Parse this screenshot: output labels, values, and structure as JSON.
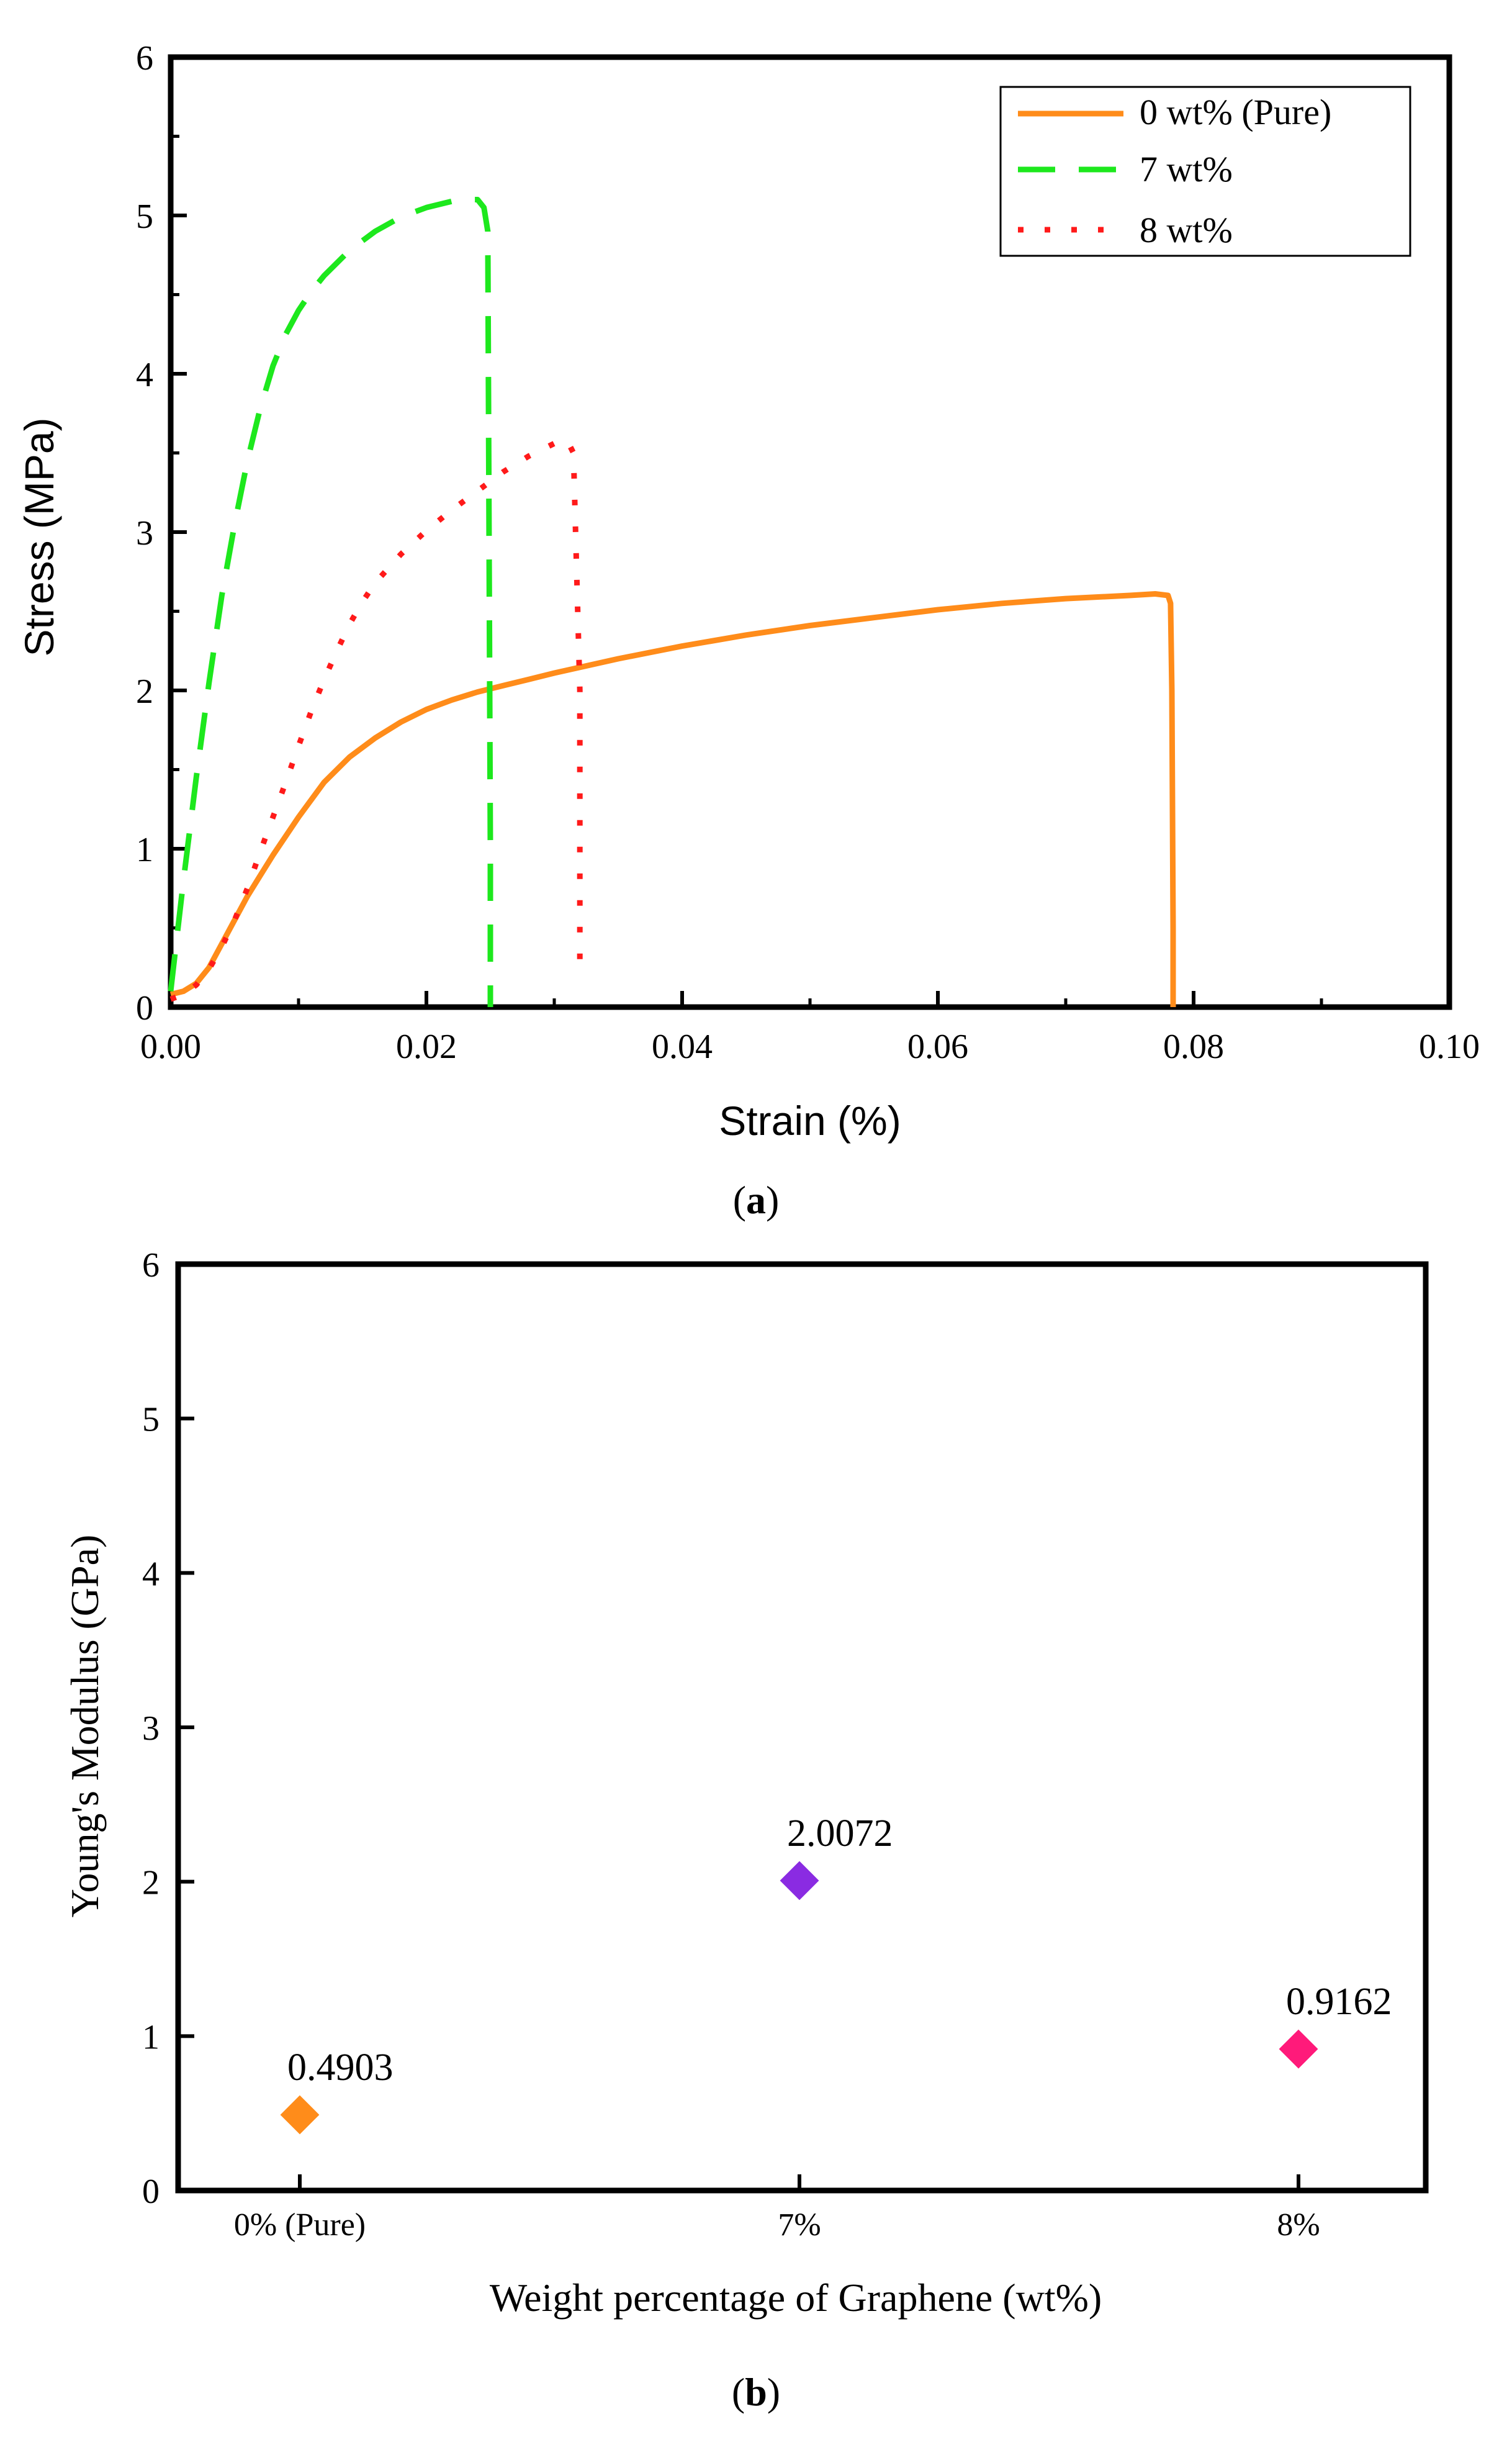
{
  "chart_data": [
    {
      "type": "line",
      "panel_label": "a",
      "title": "",
      "xlabel": "Strain (%)",
      "ylabel": "Stress (MPa)",
      "xlim": [
        0,
        0.1
      ],
      "ylim": [
        0,
        6
      ],
      "xticks": [
        0.0,
        0.02,
        0.04,
        0.06,
        0.08,
        0.1
      ],
      "xtick_labels": [
        "0.00",
        "0.02",
        "0.04",
        "0.06",
        "0.08",
        "0.10"
      ],
      "yticks": [
        0,
        1,
        2,
        3,
        4,
        5,
        6
      ],
      "ytick_labels": [
        "0",
        "1",
        "2",
        "3",
        "4",
        "5",
        "6"
      ],
      "grid": false,
      "legend": "top-right",
      "series": [
        {
          "name": "0 wt% (Pure)",
          "color": "#ff8c1a",
          "style": "solid",
          "x": [
            0.0,
            0.001,
            0.002,
            0.003,
            0.004,
            0.005,
            0.006,
            0.007,
            0.008,
            0.009,
            0.01,
            0.012,
            0.014,
            0.016,
            0.018,
            0.02,
            0.022,
            0.024,
            0.026,
            0.028,
            0.03,
            0.035,
            0.04,
            0.045,
            0.05,
            0.055,
            0.06,
            0.065,
            0.07,
            0.075,
            0.077,
            0.078,
            0.0782,
            0.0783,
            0.0784,
            0.0784
          ],
          "y": [
            0.08,
            0.1,
            0.15,
            0.25,
            0.4,
            0.55,
            0.7,
            0.83,
            0.96,
            1.08,
            1.2,
            1.42,
            1.58,
            1.7,
            1.8,
            1.88,
            1.94,
            1.99,
            2.03,
            2.07,
            2.11,
            2.2,
            2.28,
            2.35,
            2.41,
            2.46,
            2.51,
            2.55,
            2.58,
            2.6,
            2.61,
            2.6,
            2.55,
            2.0,
            0.5,
            0.0
          ]
        },
        {
          "name": "7 wt%",
          "color": "#1de81d",
          "style": "dashed",
          "x": [
            0.0,
            0.001,
            0.002,
            0.003,
            0.004,
            0.005,
            0.006,
            0.007,
            0.008,
            0.009,
            0.01,
            0.011,
            0.012,
            0.014,
            0.016,
            0.018,
            0.02,
            0.022,
            0.023,
            0.024,
            0.0245,
            0.0248,
            0.0249,
            0.025,
            0.025
          ],
          "y": [
            0.1,
            0.8,
            1.45,
            2.05,
            2.6,
            3.05,
            3.45,
            3.78,
            4.05,
            4.25,
            4.4,
            4.52,
            4.62,
            4.78,
            4.9,
            4.99,
            5.05,
            5.09,
            5.1,
            5.1,
            5.05,
            4.9,
            3.0,
            1.0,
            0.0
          ]
        },
        {
          "name": "8 wt%",
          "color": "#ff1a1a",
          "style": "dotted",
          "x": [
            0.0,
            0.001,
            0.002,
            0.003,
            0.004,
            0.005,
            0.006,
            0.007,
            0.008,
            0.009,
            0.01,
            0.011,
            0.012,
            0.013,
            0.014,
            0.015,
            0.016,
            0.018,
            0.02,
            0.022,
            0.024,
            0.026,
            0.028,
            0.03,
            0.031,
            0.0315,
            0.032,
            0.032
          ],
          "y": [
            0.05,
            0.08,
            0.14,
            0.24,
            0.38,
            0.55,
            0.75,
            0.98,
            1.2,
            1.42,
            1.65,
            1.87,
            2.07,
            2.25,
            2.42,
            2.56,
            2.68,
            2.86,
            3.01,
            3.14,
            3.26,
            3.38,
            3.48,
            3.56,
            3.58,
            3.5,
            2.0,
            0.2
          ]
        }
      ]
    },
    {
      "type": "scatter",
      "panel_label": "b",
      "title": "",
      "xlabel": "Weight percentage of Graphene (wt%)",
      "ylabel": "Young's Modulus (GPa)",
      "ylim": [
        0,
        6
      ],
      "yticks": [
        0,
        1,
        2,
        3,
        4,
        5,
        6
      ],
      "ytick_labels": [
        "0",
        "1",
        "2",
        "3",
        "4",
        "5",
        "6"
      ],
      "grid": false,
      "categories": [
        "0% (Pure)",
        "7%",
        "8%"
      ],
      "values": [
        0.4903,
        2.0072,
        0.9162
      ],
      "value_labels": [
        "0.4903",
        "2.0072",
        "0.9162"
      ],
      "colors": [
        "#ff8c1a",
        "#8a2be2",
        "#ff1a7a"
      ],
      "marker": "diamond"
    }
  ]
}
